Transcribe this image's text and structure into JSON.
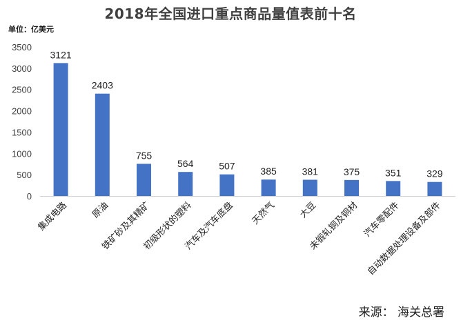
{
  "chart_data": {
    "type": "bar",
    "title": "2018年全国进口重点商品量值表前十名",
    "unit": "单位：亿美元",
    "source": "来源：  海关总署",
    "categories": [
      "集成电路",
      "原油",
      "铁矿砂及其精矿",
      "初级形状的塑料",
      "汽车及汽车底盘",
      "天然气",
      "大豆",
      "未锻轧铜及铜材",
      "汽车零配件",
      "自动数据处理设备及部件"
    ],
    "values": [
      3121,
      2403,
      755,
      564,
      507,
      385,
      381,
      375,
      351,
      329
    ],
    "yticks": [
      0,
      500,
      1000,
      1500,
      2000,
      2500,
      3000,
      3500
    ],
    "ylim": [
      0,
      3500
    ],
    "bar_color": "#4472c4",
    "grid": false,
    "legend": "none"
  }
}
